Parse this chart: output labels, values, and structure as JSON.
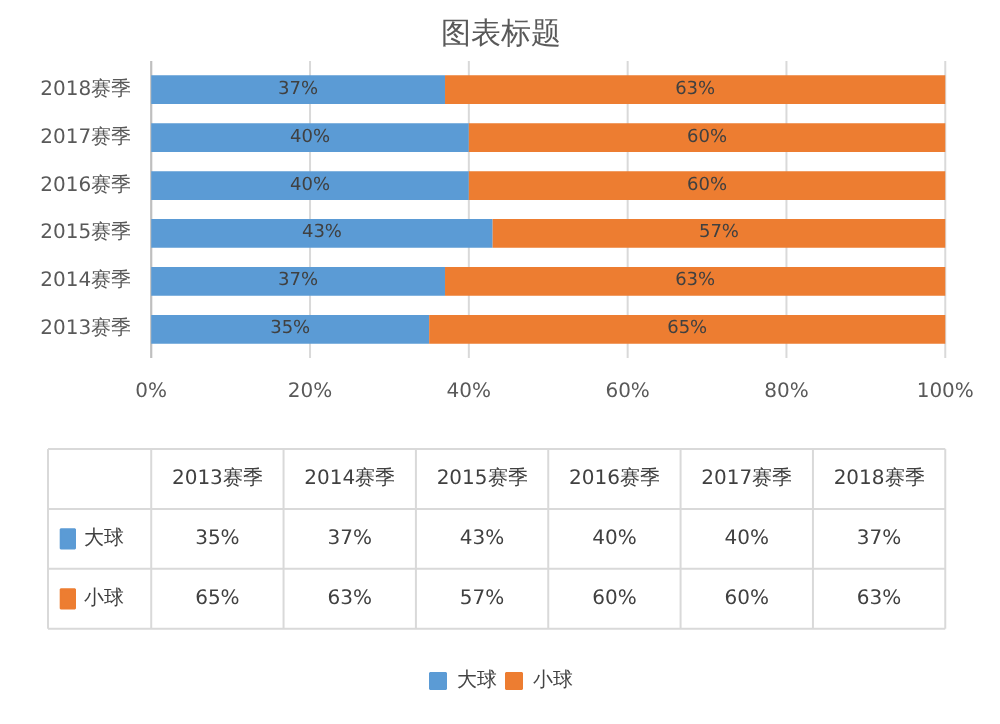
{
  "chart_data": {
    "type": "bar",
    "orientation": "horizontal",
    "stacked": true,
    "title": "图表标题",
    "categories": [
      "2018赛季",
      "2017赛季",
      "2016赛季",
      "2015赛季",
      "2014赛季",
      "2013赛季"
    ],
    "series": [
      {
        "name": "大球",
        "color": "#5b9bd5",
        "values": [
          37,
          40,
          40,
          43,
          37,
          35
        ],
        "value_labels": [
          "37%",
          "40%",
          "40%",
          "43%",
          "37%",
          "35%"
        ]
      },
      {
        "name": "小球",
        "color": "#ed7d31",
        "values": [
          63,
          60,
          60,
          57,
          63,
          65
        ],
        "value_labels": [
          "63%",
          "60%",
          "60%",
          "57%",
          "63%",
          "65%"
        ]
      }
    ],
    "xlim": [
      0,
      100
    ],
    "xticks": [
      {
        "value": 0,
        "label": "0%"
      },
      {
        "value": 20,
        "label": "20%"
      },
      {
        "value": 40,
        "label": "40%"
      },
      {
        "value": 60,
        "label": "60%"
      },
      {
        "value": 80,
        "label": "80%"
      },
      {
        "value": 100,
        "label": "100%"
      }
    ],
    "grid": "x",
    "legend": "bottom"
  }
}
